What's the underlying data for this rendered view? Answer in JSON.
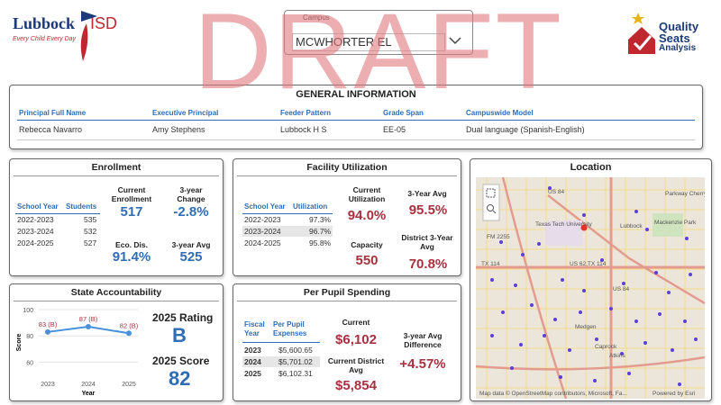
{
  "header": {
    "district_name": "Lubbock",
    "district_suffix": "ISD",
    "district_tagline": "Every Child Every Day",
    "campus_label": "Campus",
    "campus_value": "MCWHORTER EL",
    "watermark": "DRAFT",
    "brand_line1": "Quality",
    "brand_line2": "Seats",
    "brand_line3": "Analysis"
  },
  "general": {
    "title": "GENERAL INFORMATION",
    "columns": [
      "Principal Full Name",
      "Executive Principal",
      "Feeder Pattern",
      "Grade Span",
      "Campuswide Model"
    ],
    "values": [
      "Rebecca Navarro",
      "Amy Stephens",
      "Lubbock H S",
      "EE-05",
      "Dual language (Spanish-English)"
    ]
  },
  "enrollment": {
    "title": "Enrollment",
    "headers": [
      "School Year",
      "Students"
    ],
    "rows": [
      [
        "2022-2023",
        "535"
      ],
      [
        "2023-2024",
        "532"
      ],
      [
        "2024-2025",
        "527"
      ]
    ],
    "current_label": "Current Enrollment",
    "current_value": "517",
    "change_label": "3-year Change",
    "change_value": "-2.8%",
    "eco_label": "Eco. Dis.",
    "eco_value": "91.4%",
    "avg_label": "3-year Avg",
    "avg_value": "525"
  },
  "facility": {
    "title": "Facility Utilization",
    "headers": [
      "School Year",
      "Utilization"
    ],
    "rows": [
      [
        "2022-2023",
        "97.3%"
      ],
      [
        "2023-2024",
        "96.7%"
      ],
      [
        "2024-2025",
        "95.8%"
      ]
    ],
    "current_label": "Current Utilization",
    "current_value": "94.0%",
    "avg_label": "3-Year Avg",
    "avg_value": "95.5%",
    "capacity_label": "Capacity",
    "capacity_value": "550",
    "district_label": "District 3-Year Avg",
    "district_value": "70.8%"
  },
  "location": {
    "title": "Location",
    "map_labels": [
      "US 84",
      "Texas Tech University",
      "Lubbock",
      "FM 2255",
      "TX 114",
      "US 62,TX 114",
      "Medgen",
      "Mackenzie Park",
      "Parkway Cherry Point",
      "US 84",
      "Caprock",
      "Atkins"
    ],
    "attribution": "Map data © OpenStreetMap contributors, Microsoft, Fa...",
    "powered_by": "Powered by Esri"
  },
  "accountability": {
    "title": "State Accountability",
    "chart": {
      "type": "line",
      "x": [
        "2023",
        "2024",
        "2025"
      ],
      "values": [
        83,
        87,
        82
      ],
      "value_labels": [
        "83 (B)",
        "87 (B)",
        "82 (B)"
      ],
      "color": "#4a90d9",
      "ylim": [
        50,
        100
      ],
      "yticks": [
        60,
        80,
        100
      ],
      "xlabel": "Year",
      "ylabel": "Score"
    },
    "rating_label": "2025 Rating",
    "rating_value": "B",
    "score_label": "2025 Score",
    "score_value": "82"
  },
  "spending": {
    "title": "Per Pupil Spending",
    "headers": [
      "Fiscal Year",
      "Per Pupil Expenses"
    ],
    "rows": [
      [
        "2023",
        "$5,600.65"
      ],
      [
        "2024",
        "$5,701.02"
      ],
      [
        "2025",
        "$6,102.31"
      ]
    ],
    "current_label": "Current",
    "current_value": "$6,102",
    "district_label": "Current District Avg",
    "district_value": "$5,854",
    "diff_label": "3-year Avg Difference",
    "diff_value": "+4.57%"
  }
}
